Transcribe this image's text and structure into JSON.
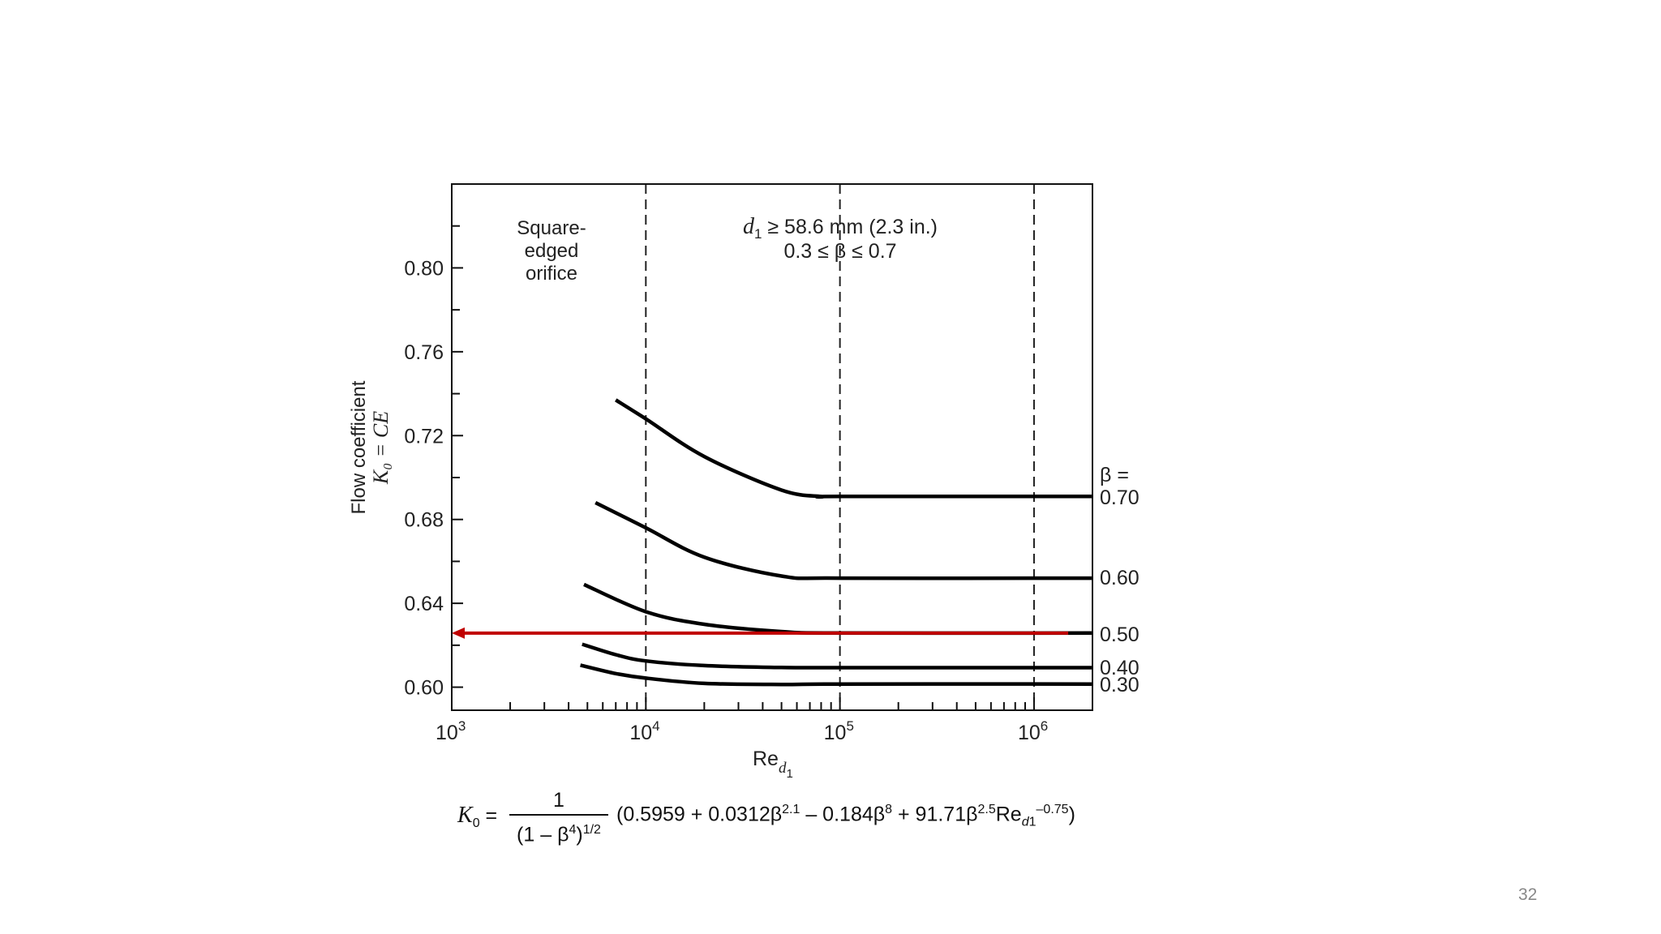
{
  "chart_data": {
    "type": "line",
    "x_scale": "log",
    "xlim": [
      1000,
      2000000
    ],
    "ylim": [
      0.589,
      0.84
    ],
    "x_ticks": [
      {
        "value": 1000,
        "base": "10",
        "exp": "3"
      },
      {
        "value": 10000,
        "base": "10",
        "exp": "4"
      },
      {
        "value": 100000,
        "base": "10",
        "exp": "5"
      },
      {
        "value": 1000000,
        "base": "10",
        "exp": "6"
      }
    ],
    "y_ticks": [
      {
        "value": 0.6,
        "label": "0.60"
      },
      {
        "value": 0.64,
        "label": "0.64"
      },
      {
        "value": 0.68,
        "label": "0.68"
      },
      {
        "value": 0.72,
        "label": "0.72"
      },
      {
        "value": 0.76,
        "label": "0.76"
      },
      {
        "value": 0.8,
        "label": "0.80"
      }
    ],
    "y_minor_ticks": [
      0.62,
      0.66,
      0.7,
      0.74,
      0.78,
      0.82
    ],
    "x_minor_ticks": [
      2000,
      3000,
      4000,
      5000,
      6000,
      7000,
      8000,
      9000,
      20000,
      30000,
      40000,
      50000,
      60000,
      70000,
      80000,
      90000,
      200000,
      300000,
      400000,
      500000,
      600000,
      700000,
      800000,
      900000,
      2000000
    ],
    "dashed_lines_x": [
      10000,
      100000,
      1000000
    ],
    "xlabel": {
      "main": "Re",
      "sub": "d",
      "subsub": "1"
    },
    "ylabel": {
      "line1": "Flow coefficient",
      "line2": "K₀ = CE"
    },
    "series": [
      {
        "name": "0.70",
        "x": [
          7000,
          10000,
          20000,
          50000,
          80000,
          100000,
          2000000
        ],
        "y": [
          0.737,
          0.728,
          0.71,
          0.694,
          0.691,
          0.691,
          0.691
        ]
      },
      {
        "name": "0.60",
        "x": [
          5500,
          10000,
          20000,
          50000,
          100000,
          2000000
        ],
        "y": [
          0.688,
          0.676,
          0.662,
          0.653,
          0.652,
          0.652
        ]
      },
      {
        "name": "0.50",
        "x": [
          4800,
          10000,
          20000,
          50000,
          100000,
          2000000
        ],
        "y": [
          0.649,
          0.636,
          0.63,
          0.6265,
          0.6258,
          0.6258
        ]
      },
      {
        "name": "0.40",
        "x": [
          4700,
          7000,
          10000,
          20000,
          50000,
          100000,
          2000000
        ],
        "y": [
          0.6205,
          0.6155,
          0.6125,
          0.6103,
          0.6094,
          0.6093,
          0.6093
        ]
      },
      {
        "name": "0.30",
        "x": [
          4600,
          7000,
          10000,
          20000,
          50000,
          100000,
          2000000
        ],
        "y": [
          0.6105,
          0.6065,
          0.6043,
          0.6018,
          0.6013,
          0.6015,
          0.6015
        ]
      }
    ],
    "beta_label": "β =",
    "series_labels": [
      "0.70",
      "0.60",
      "0.50",
      "0.40",
      "0.30"
    ],
    "annotation_arrow": {
      "color": "#c00000",
      "y": 0.6258,
      "x_from": 1500000,
      "x_to": 1000
    },
    "annotations": {
      "orifice": [
        "Square-",
        "edged",
        "orifice"
      ],
      "range_line1_var": "d",
      "range_line1_sub": "1",
      "range_line1_rest": " ≥ 58.6 mm (2.3 in.)",
      "range_line2": "0.3 ≤ β ≤ 0.7"
    }
  },
  "formula": {
    "lhs": "K",
    "lhs_sub": "0",
    "equals": " =",
    "numerator": "1",
    "den_a": "(1 – β",
    "den_sup1": "4",
    "den_b": ")",
    "den_sup2": "1/2",
    "p1": "(0.5959 + 0.0312β",
    "s1": "2.1",
    "p2": " – 0.184β",
    "s2": "8",
    "p3": "  + 91.71β",
    "s3": "2.5",
    "p4": "Re",
    "sub_d": "d",
    "sub_1": "1",
    "s4": "–0.75",
    "p5": ")"
  },
  "slide_number": "32"
}
